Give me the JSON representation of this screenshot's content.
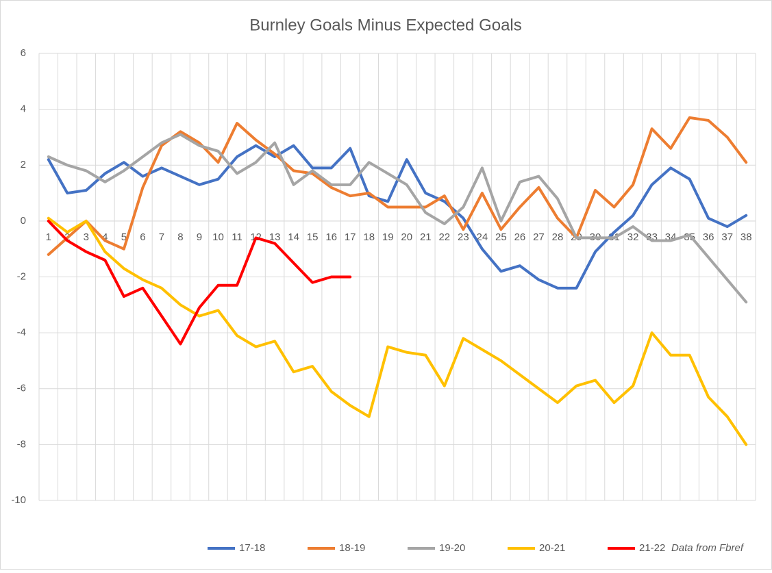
{
  "chart_data": {
    "type": "line",
    "title": "Burnley Goals Minus Expected Goals",
    "categories": [
      "1",
      "2",
      "3",
      "4",
      "5",
      "6",
      "7",
      "8",
      "9",
      "10",
      "11",
      "12",
      "13",
      "14",
      "15",
      "16",
      "17",
      "18",
      "19",
      "20",
      "21",
      "22",
      "23",
      "24",
      "25",
      "26",
      "27",
      "28",
      "29",
      "30",
      "31",
      "32",
      "33",
      "34",
      "35",
      "36",
      "37",
      "38"
    ],
    "series": [
      {
        "name": "17-18",
        "color": "#4472c4",
        "values": [
          2.2,
          1.0,
          1.1,
          1.7,
          2.1,
          1.6,
          1.9,
          1.6,
          1.3,
          1.5,
          2.3,
          2.7,
          2.3,
          2.7,
          1.9,
          1.9,
          2.6,
          0.9,
          0.7,
          2.2,
          1.0,
          0.7,
          0.1,
          -1.0,
          -1.8,
          -1.6,
          -2.1,
          -2.4,
          -2.4,
          -1.1,
          -0.4,
          0.2,
          1.3,
          1.9,
          1.5,
          0.1,
          -0.2,
          0.2
        ]
      },
      {
        "name": "18-19",
        "color": "#ed7d31",
        "values": [
          -1.2,
          -0.6,
          0.0,
          -0.7,
          -1.0,
          1.2,
          2.7,
          3.2,
          2.8,
          2.1,
          3.5,
          2.9,
          2.4,
          1.8,
          1.7,
          1.2,
          0.9,
          1.0,
          0.5,
          0.5,
          0.5,
          0.9,
          -0.3,
          1.0,
          -0.3,
          0.5,
          1.2,
          0.1,
          -0.6,
          1.1,
          0.5,
          1.3,
          3.3,
          2.6,
          3.7,
          3.6,
          3.0,
          2.1
        ]
      },
      {
        "name": "19-20",
        "color": "#a5a5a5",
        "values": [
          2.3,
          2.0,
          1.8,
          1.4,
          1.8,
          2.3,
          2.8,
          3.1,
          2.7,
          2.5,
          1.7,
          2.1,
          2.8,
          1.3,
          1.8,
          1.3,
          1.3,
          2.1,
          1.7,
          1.3,
          0.3,
          -0.1,
          0.5,
          1.9,
          0.0,
          1.4,
          1.6,
          0.8,
          -0.6,
          -0.6,
          -0.6,
          -0.2,
          -0.7,
          -0.7,
          -0.5,
          -1.3,
          -2.1,
          -2.9
        ]
      },
      {
        "name": "20-21",
        "color": "#ffc000",
        "values": [
          0.1,
          -0.4,
          0.0,
          -1.1,
          -1.7,
          -2.1,
          -2.4,
          -3.0,
          -3.4,
          -3.2,
          -4.1,
          -4.5,
          -4.3,
          -5.4,
          -5.2,
          -6.1,
          -6.6,
          -7.0,
          -4.5,
          -4.7,
          -4.8,
          -5.9,
          -4.2,
          -4.6,
          -5.0,
          -5.5,
          -6.0,
          -6.5,
          -5.9,
          -5.7,
          -6.5,
          -5.9,
          -4.0,
          -4.8,
          -4.8,
          -6.3,
          -7.0,
          -8.0
        ]
      },
      {
        "name": "21-22",
        "color": "#ff0000",
        "values": [
          0.0,
          -0.7,
          -1.1,
          -1.4,
          -2.7,
          -2.4,
          -3.4,
          -4.4,
          -3.1,
          -2.3,
          -2.3,
          -0.6,
          -0.8,
          -1.5,
          -2.2,
          -2.0,
          -2.0,
          null,
          null,
          null,
          null,
          null,
          null,
          null,
          null,
          null,
          null,
          null,
          null,
          null,
          null,
          null,
          null,
          null,
          null,
          null,
          null,
          null
        ]
      }
    ],
    "ylim": [
      -10,
      6
    ],
    "yticks": [
      -10,
      -8,
      -6,
      -4,
      -2,
      0,
      2,
      4,
      6
    ],
    "grid": true,
    "legend": "bottom",
    "annotation": "Data from Fbref"
  }
}
